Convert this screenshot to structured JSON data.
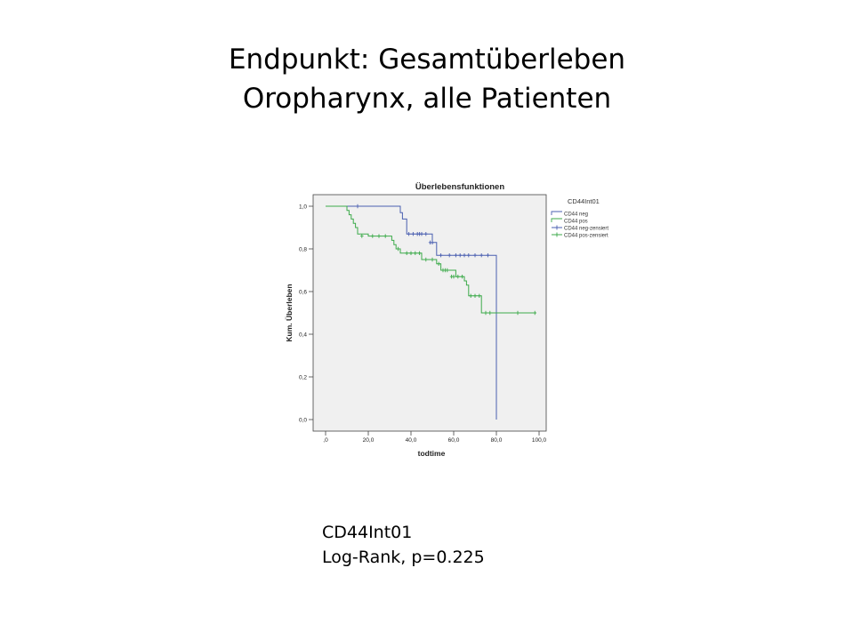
{
  "slide": {
    "title_line1": "Endpunkt: Gesamtüberleben",
    "title_line2": "Oropharynx, alle Patienten",
    "note_line1": "CD44Int01",
    "note_line2": "Log-Rank, p=0.225"
  },
  "chart_data": {
    "type": "line",
    "subtype": "kaplan-meier-step",
    "title": "Überlebensfunktionen",
    "xlabel": "todtime",
    "ylabel": "Kum. Überleben",
    "xlim": [
      0,
      100
    ],
    "ylim": [
      0,
      1
    ],
    "x_ticks": [
      0,
      20,
      40,
      60,
      80,
      100
    ],
    "x_tick_labels": [
      ",0",
      "20,0",
      "40,0",
      "60,0",
      "80,0",
      "100,0"
    ],
    "y_ticks": [
      0,
      0.2,
      0.4,
      0.6,
      0.8,
      1.0
    ],
    "y_tick_labels": [
      "0,0",
      "0,2",
      "0,4",
      "0,6",
      "0,8",
      "1,0"
    ],
    "grid": false,
    "legend_title": "CD44Int01",
    "legend_position": "right",
    "legend": [
      {
        "label": "CD44 neg",
        "color": "#4a5fb0",
        "marker": "step"
      },
      {
        "label": "CD44 pos",
        "color": "#3caa4a",
        "marker": "step"
      },
      {
        "label": "CD44 neg-zensiert",
        "color": "#4a5fb0",
        "marker": "plus"
      },
      {
        "label": "CD44 pos-zensiert",
        "color": "#3caa4a",
        "marker": "plus"
      }
    ],
    "series": [
      {
        "name": "CD44 neg",
        "color": "#4a5fb0",
        "x": [
          0,
          34,
          35,
          36,
          38,
          48,
          50,
          52,
          80,
          80
        ],
        "y": [
          1.0,
          1.0,
          0.97,
          0.94,
          0.87,
          0.87,
          0.83,
          0.77,
          0.77,
          0.0
        ],
        "censored": [
          [
            15,
            1.0
          ],
          [
            39,
            0.87
          ],
          [
            41,
            0.87
          ],
          [
            43,
            0.87
          ],
          [
            44,
            0.87
          ],
          [
            45,
            0.87
          ],
          [
            47,
            0.87
          ],
          [
            49,
            0.83
          ],
          [
            50,
            0.83
          ],
          [
            54,
            0.77
          ],
          [
            58,
            0.77
          ],
          [
            61,
            0.77
          ],
          [
            63,
            0.77
          ],
          [
            65,
            0.77
          ],
          [
            67,
            0.77
          ],
          [
            70,
            0.77
          ],
          [
            73,
            0.77
          ],
          [
            76,
            0.77
          ]
        ]
      },
      {
        "name": "CD44 pos",
        "color": "#3caa4a",
        "x": [
          0,
          9,
          10,
          11,
          12,
          13,
          14,
          15,
          20,
          30,
          31,
          32,
          33,
          34,
          35,
          36,
          37,
          41,
          45,
          52,
          54,
          58,
          61,
          65,
          66,
          67,
          73,
          98
        ],
        "y": [
          1.0,
          1.0,
          0.98,
          0.96,
          0.94,
          0.92,
          0.9,
          0.87,
          0.86,
          0.86,
          0.84,
          0.82,
          0.8,
          0.8,
          0.78,
          0.78,
          0.78,
          0.78,
          0.75,
          0.73,
          0.7,
          0.7,
          0.67,
          0.65,
          0.63,
          0.58,
          0.5,
          0.5
        ],
        "censored": [
          [
            17,
            0.86
          ],
          [
            22,
            0.86
          ],
          [
            25,
            0.86
          ],
          [
            28,
            0.86
          ],
          [
            34,
            0.8
          ],
          [
            38,
            0.78
          ],
          [
            40,
            0.78
          ],
          [
            42,
            0.78
          ],
          [
            44,
            0.78
          ],
          [
            47,
            0.75
          ],
          [
            50,
            0.75
          ],
          [
            53,
            0.73
          ],
          [
            55,
            0.7
          ],
          [
            56,
            0.7
          ],
          [
            57,
            0.7
          ],
          [
            59,
            0.67
          ],
          [
            60,
            0.67
          ],
          [
            62,
            0.67
          ],
          [
            64,
            0.67
          ],
          [
            68,
            0.58
          ],
          [
            70,
            0.58
          ],
          [
            72,
            0.58
          ],
          [
            75,
            0.5
          ],
          [
            77,
            0.5
          ],
          [
            90,
            0.5
          ],
          [
            98,
            0.5
          ]
        ]
      }
    ]
  }
}
